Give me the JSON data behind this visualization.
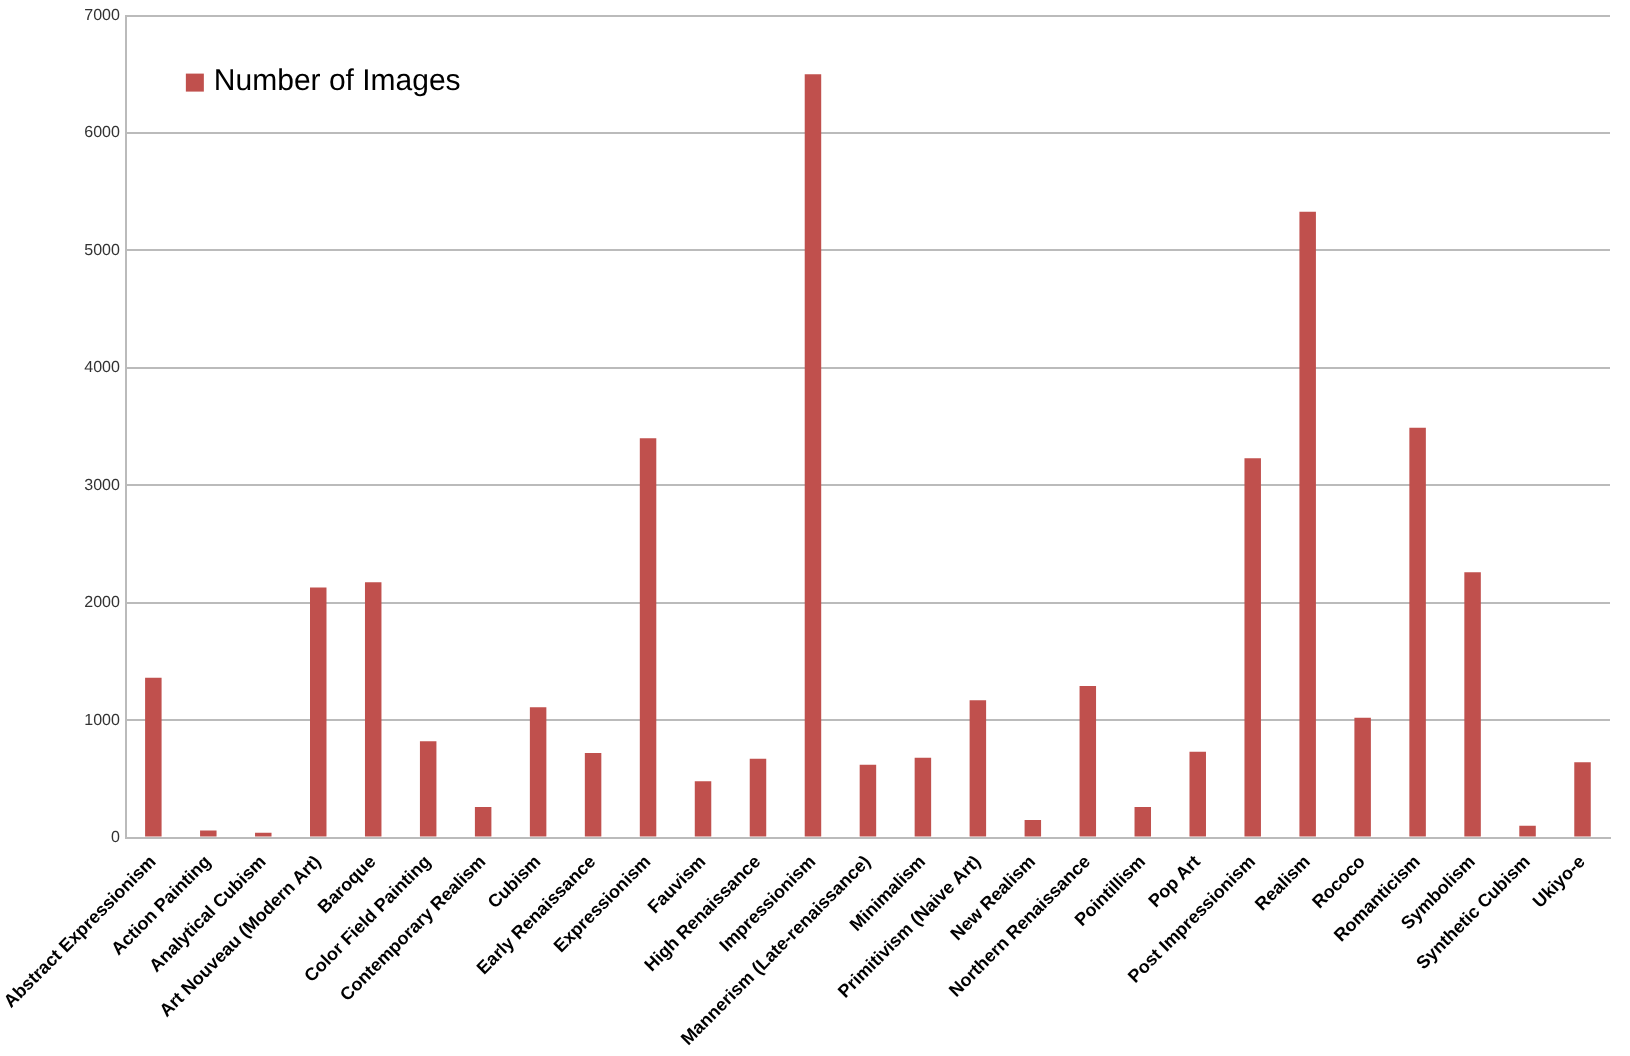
{
  "chart_data": {
    "type": "bar",
    "categories": [
      "Abstract Expressionism",
      "Action Painting",
      "Analytical Cubism",
      "Art Nouveau (Modern Art)",
      "Baroque",
      "Color Field Painting",
      "Contemporary Realism",
      "Cubism",
      "Early Renaissance",
      "Expressionism",
      "Fauvism",
      "High Renaissance",
      "Impressionism",
      "Mannerism (Late-renaissance)",
      "Minimalism",
      "Primitivism (Naive Art)",
      "New Realism",
      "Northern Renaissance",
      "Pointillism",
      "Pop Art",
      "Post Impressionism",
      "Realism",
      "Rococo",
      "Romanticism",
      "Symbolism",
      "Synthetic Cubism",
      "Ukiyo-e"
    ],
    "series": [
      {
        "name": "Number of Images",
        "color": "#c0504d",
        "values": [
          1360,
          60,
          40,
          2130,
          2175,
          820,
          260,
          1110,
          720,
          3400,
          480,
          670,
          6500,
          620,
          680,
          1170,
          150,
          1290,
          260,
          730,
          3230,
          5330,
          1020,
          3490,
          2260,
          100,
          640
        ]
      }
    ],
    "ylim": [
      0,
      7000
    ],
    "yticks": [
      0,
      1000,
      2000,
      3000,
      4000,
      5000,
      6000,
      7000
    ],
    "grid": "y",
    "legend": "top left"
  }
}
